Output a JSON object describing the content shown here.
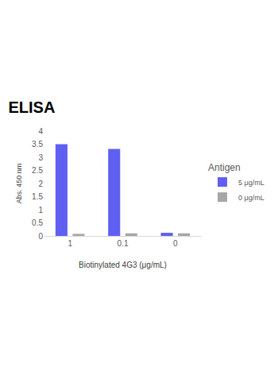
{
  "chart_data": {
    "type": "bar",
    "title": "ELISA",
    "x_label": "Biotinylated 4G3 (μg/mL)",
    "y_label": "Abs. 450 nm",
    "legend_title": "Antigen",
    "categories": [
      "1",
      "0.1",
      "0"
    ],
    "series": [
      {
        "name": "5 μg/mL",
        "color": "#5f5ff2",
        "values": [
          3.5,
          3.32,
          0.12
        ]
      },
      {
        "name": "0 μg/mL",
        "color": "#a6a6a6",
        "values": [
          0.08,
          0.1,
          0.1
        ]
      }
    ],
    "ylim": [
      0,
      4
    ],
    "yticks": [
      0,
      0.5,
      1,
      1.5,
      2,
      2.5,
      3,
      3.5,
      4
    ],
    "grid": false,
    "legend": "right"
  }
}
